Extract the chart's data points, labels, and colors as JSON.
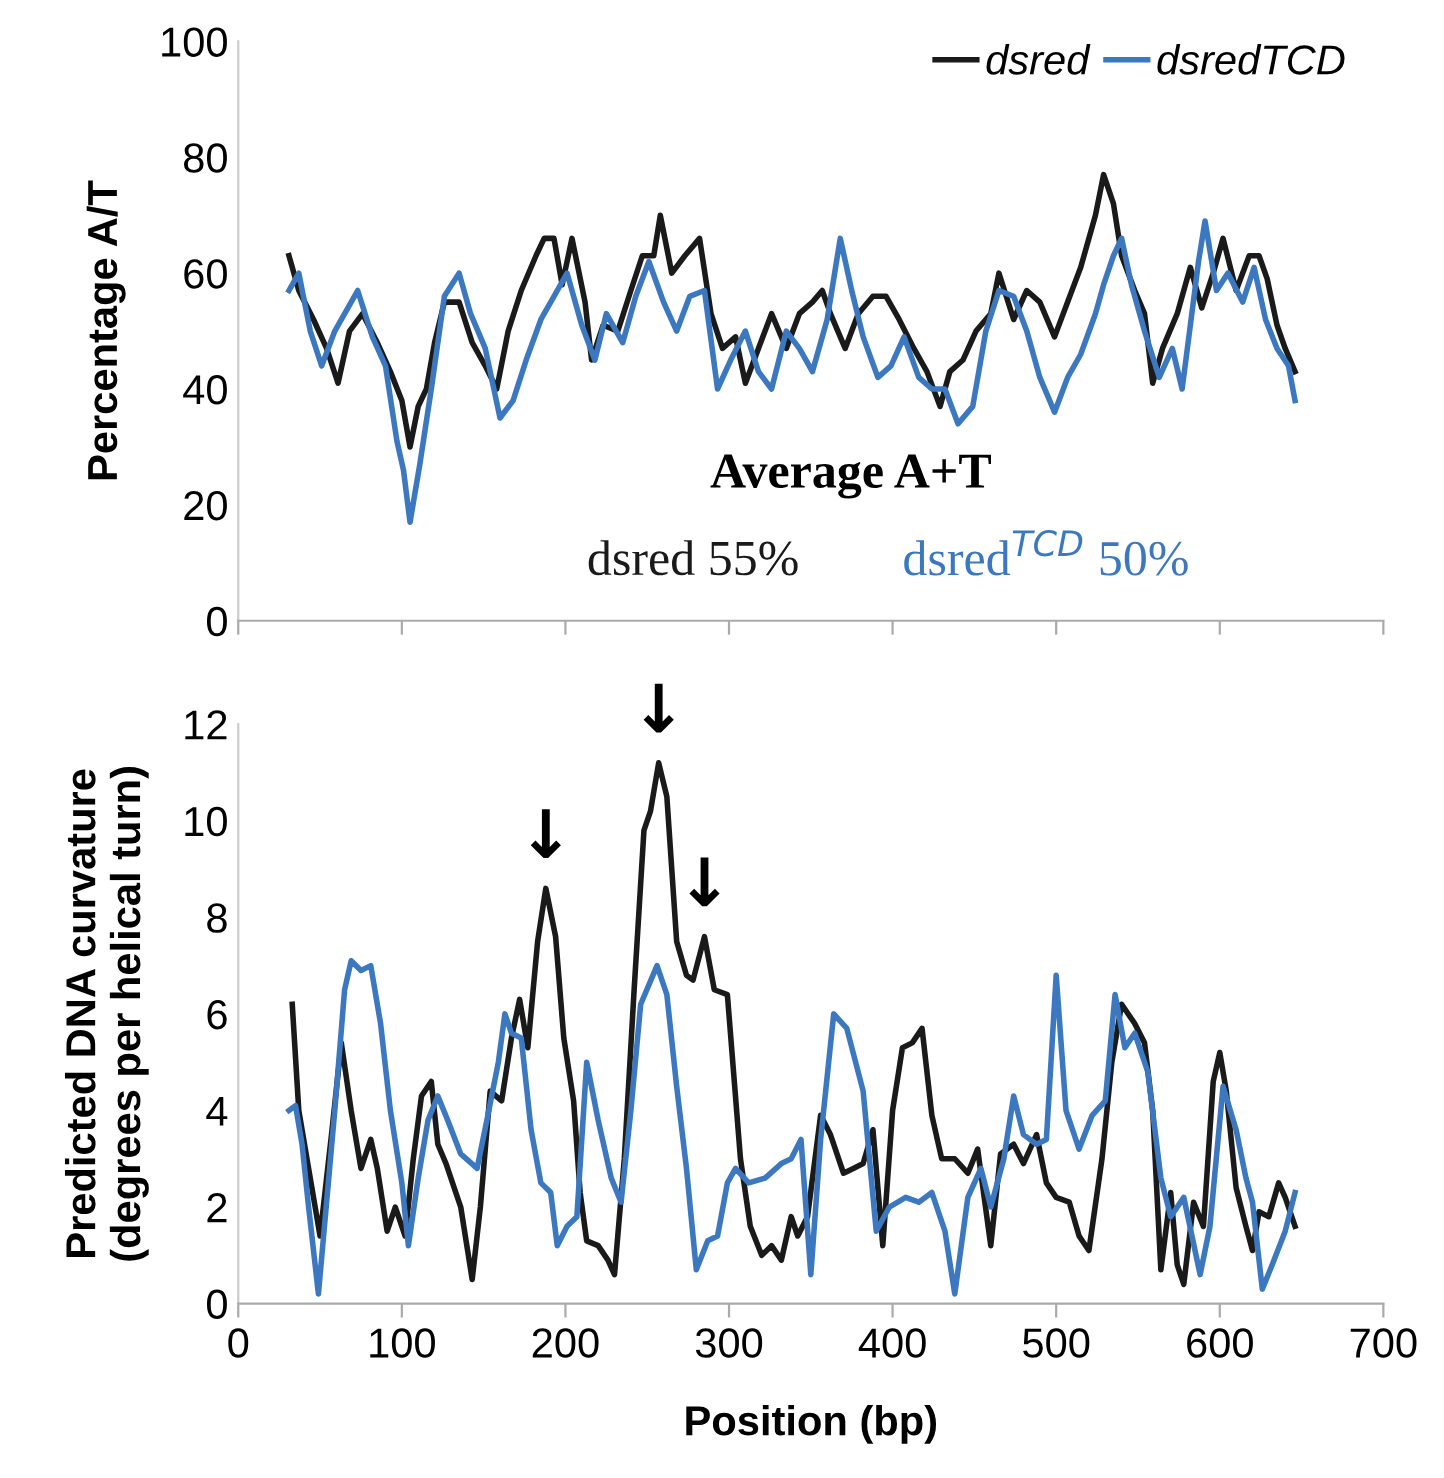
{
  "chart_data": [
    {
      "type": "line",
      "ylabel": "Percentage A/T",
      "xlim": [
        0,
        700
      ],
      "xticks": [
        {
          "value": 0,
          "label": null
        },
        {
          "value": 100,
          "label": null
        },
        {
          "value": 200,
          "label": null
        },
        {
          "value": 300,
          "label": null
        },
        {
          "value": 400,
          "label": null
        },
        {
          "value": 500,
          "label": null
        },
        {
          "value": 600,
          "label": null
        },
        {
          "value": 700,
          "label": null
        }
      ],
      "ylim": [
        0,
        100
      ],
      "yticks": [
        0,
        20,
        40,
        60,
        80,
        100
      ],
      "tick_labels": "y",
      "legend": "top right",
      "grid": false,
      "annotations": [
        "Average A+T",
        "dsred 55%",
        "dsred$^{TCD}$ 50%"
      ],
      "series": [
        {
          "name": "dsred",
          "color": "#1a1a1a",
          "x": [
            31,
            37,
            46,
            54,
            61,
            68,
            76,
            85,
            93,
            100,
            105,
            110,
            115,
            120,
            126,
            135,
            143,
            151,
            158,
            165,
            173,
            182,
            187,
            193,
            198,
            204,
            212,
            216,
            223,
            232,
            240,
            247,
            254,
            258,
            265,
            273,
            282,
            289,
            296,
            304,
            310,
            318,
            326,
            335,
            343,
            351,
            357,
            362,
            371,
            379,
            388,
            396,
            404,
            413,
            421,
            429,
            435,
            443,
            451,
            460,
            465,
            474,
            482,
            490,
            499,
            507,
            515,
            524,
            529,
            535,
            540,
            548,
            554,
            559,
            565,
            574,
            582,
            589,
            596,
            602,
            610,
            618,
            624,
            629,
            635,
            640,
            646
          ],
          "values": [
            63,
            57,
            52,
            47,
            41,
            50,
            53,
            48,
            43,
            38,
            30,
            37,
            40,
            48,
            55,
            55,
            48,
            44,
            40,
            50,
            57,
            63,
            66,
            66,
            58,
            66,
            55,
            45,
            51,
            50,
            57,
            63,
            63,
            70,
            60,
            63,
            66,
            53,
            47,
            49,
            41,
            47,
            53,
            47,
            53,
            55,
            57,
            53,
            47,
            53,
            56,
            56,
            52,
            47,
            43,
            37,
            43,
            45,
            50,
            53,
            60,
            52,
            57,
            55,
            49,
            55,
            61,
            70,
            77,
            72,
            63,
            57,
            53,
            41,
            47,
            53,
            61,
            54,
            60,
            66,
            57,
            63,
            63,
            59,
            51,
            47,
            43
          ]
        },
        {
          "name": "dsredTCD",
          "color": "#3b78c0",
          "x": [
            31,
            37,
            44,
            51,
            59,
            73,
            82,
            90,
            97,
            101,
            105,
            111,
            118,
            126,
            135,
            142,
            151,
            160,
            168,
            176,
            185,
            193,
            201,
            210,
            218,
            225,
            235,
            243,
            251,
            260,
            268,
            276,
            285,
            293,
            301,
            310,
            318,
            326,
            335,
            343,
            351,
            360,
            368,
            375,
            382,
            391,
            399,
            407,
            416,
            424,
            432,
            440,
            449,
            457,
            465,
            474,
            482,
            490,
            499,
            507,
            515,
            524,
            529,
            535,
            540,
            546,
            554,
            563,
            571,
            577,
            587,
            591,
            598,
            605,
            614,
            621,
            628,
            635,
            642,
            646
          ],
          "values": [
            57,
            60,
            50,
            44,
            50,
            57,
            49,
            44,
            31,
            26,
            17,
            27,
            40,
            56,
            60,
            53,
            47,
            35,
            38,
            45,
            52,
            56,
            60,
            51,
            45,
            53,
            48,
            56,
            62,
            55,
            50,
            56,
            57,
            40,
            45,
            50,
            43,
            40,
            50,
            47,
            43,
            52,
            66,
            57,
            49,
            42,
            44,
            49,
            42,
            40,
            40,
            34,
            37,
            50,
            57,
            56,
            50,
            42,
            36,
            42,
            46,
            53,
            58,
            63,
            66,
            58,
            50,
            42,
            47,
            40,
            62,
            69,
            57,
            60,
            55,
            61,
            52,
            47,
            44,
            38
          ]
        }
      ]
    },
    {
      "type": "line",
      "xlabel": "Position (bp)",
      "ylabel": "Predicted DNA curvature\n(degrees per helical turn)",
      "xlim": [
        0,
        700
      ],
      "xticks": [
        0,
        100,
        200,
        300,
        400,
        500,
        600,
        700
      ],
      "ylim": [
        0,
        12
      ],
      "yticks": [
        0,
        2,
        4,
        6,
        8,
        10,
        12
      ],
      "grid": false,
      "annotations": [
        {
          "text": "↓",
          "x": 188,
          "y": 8.6
        },
        {
          "text": "↓",
          "x": 257,
          "y": 11.2
        },
        {
          "text": "↓",
          "x": 285,
          "y": 7.6
        }
      ],
      "series": [
        {
          "color": "#1a1a1a",
          "x": [
            33,
            37,
            43,
            50,
            57,
            63,
            69,
            75,
            81,
            85,
            91,
            96,
            102,
            107,
            112,
            118,
            122,
            127,
            136,
            143,
            148,
            154,
            161,
            167,
            172,
            177,
            183,
            188,
            194,
            199,
            205,
            209,
            213,
            220,
            226,
            230,
            236,
            242,
            248,
            252,
            257,
            262,
            268,
            274,
            278,
            285,
            291,
            299,
            307,
            313,
            320,
            326,
            332,
            338,
            342,
            348,
            356,
            362,
            370,
            376,
            382,
            388,
            394,
            400,
            406,
            412,
            418,
            424,
            430,
            438,
            446,
            452,
            460,
            466,
            474,
            480,
            488,
            494,
            500,
            508,
            514,
            520,
            528,
            534,
            540,
            548,
            554,
            559,
            564,
            570,
            574,
            578,
            584,
            590,
            596,
            600,
            604,
            610,
            616,
            620,
            624,
            630,
            636,
            640,
            644,
            646
          ],
          "values": [
            6.2,
            4.0,
            2.8,
            1.4,
            3.5,
            5.4,
            4.0,
            2.8,
            3.4,
            2.8,
            1.5,
            2.0,
            1.4,
            3.0,
            4.3,
            4.6,
            3.3,
            2.9,
            2.0,
            0.5,
            2.0,
            4.4,
            4.2,
            5.5,
            6.3,
            5.3,
            7.5,
            8.6,
            7.6,
            5.5,
            4.2,
            2.3,
            1.3,
            1.2,
            0.9,
            0.6,
            3.0,
            6.5,
            9.8,
            10.2,
            11.2,
            10.5,
            7.5,
            6.8,
            6.7,
            7.6,
            6.5,
            6.4,
            3.0,
            1.6,
            1.0,
            1.2,
            0.9,
            1.8,
            1.4,
            1.8,
            3.9,
            3.5,
            2.7,
            2.8,
            2.9,
            3.6,
            1.2,
            4.0,
            5.3,
            5.4,
            5.7,
            3.9,
            3.0,
            3.0,
            2.7,
            3.2,
            1.2,
            3.1,
            3.3,
            2.9,
            3.5,
            2.5,
            2.2,
            2.1,
            1.4,
            1.1,
            3.0,
            5.0,
            6.2,
            5.8,
            5.4,
            4.0,
            0.7,
            2.3,
            0.8,
            0.4,
            2.1,
            1.6,
            4.6,
            5.2,
            4.4,
            2.4,
            1.6,
            1.1,
            1.9,
            1.8,
            2.5,
            2.2,
            1.8,
            1.6
          ]
        },
        {
          "color": "#3b78c0",
          "x": [
            31,
            35,
            39,
            43,
            49,
            54,
            59,
            65,
            69,
            75,
            81,
            87,
            93,
            100,
            104,
            110,
            116,
            122,
            128,
            136,
            146,
            152,
            159,
            163,
            167,
            173,
            179,
            185,
            191,
            195,
            201,
            207,
            213,
            220,
            228,
            234,
            240,
            246,
            256,
            262,
            268,
            274,
            280,
            287,
            293,
            299,
            304,
            312,
            322,
            332,
            338,
            344,
            350,
            356,
            364,
            372,
            382,
            390,
            398,
            408,
            416,
            424,
            432,
            438,
            446,
            454,
            460,
            468,
            474,
            480,
            488,
            494,
            500,
            506,
            514,
            522,
            530,
            536,
            542,
            548,
            556,
            564,
            570,
            578,
            588,
            594,
            602,
            610,
            616,
            620,
            626,
            632,
            640,
            646
          ],
          "values": [
            4.0,
            4.1,
            3.3,
            2.0,
            0.2,
            2.1,
            4.0,
            6.5,
            7.1,
            6.9,
            7.0,
            5.8,
            4.0,
            2.5,
            1.2,
            2.6,
            3.8,
            4.3,
            3.8,
            3.1,
            2.8,
            3.8,
            5.0,
            6.0,
            5.6,
            5.5,
            3.6,
            2.5,
            2.3,
            1.2,
            1.6,
            1.8,
            5.0,
            3.8,
            2.6,
            2.1,
            4.0,
            6.2,
            7.0,
            6.4,
            4.5,
            2.8,
            0.7,
            1.3,
            1.4,
            2.5,
            2.8,
            2.5,
            2.6,
            2.9,
            3.0,
            3.4,
            0.6,
            3.4,
            6.0,
            5.7,
            4.4,
            1.5,
            2.0,
            2.2,
            2.1,
            2.3,
            1.5,
            0.2,
            2.2,
            2.8,
            2.0,
            3.0,
            4.3,
            3.5,
            3.3,
            3.4,
            6.8,
            4.0,
            3.2,
            3.9,
            4.2,
            6.4,
            5.3,
            5.6,
            4.8,
            2.6,
            1.8,
            2.2,
            0.6,
            1.6,
            4.5,
            3.6,
            2.6,
            2.1,
            0.3,
            0.8,
            1.5,
            2.3
          ]
        }
      ]
    }
  ]
}
